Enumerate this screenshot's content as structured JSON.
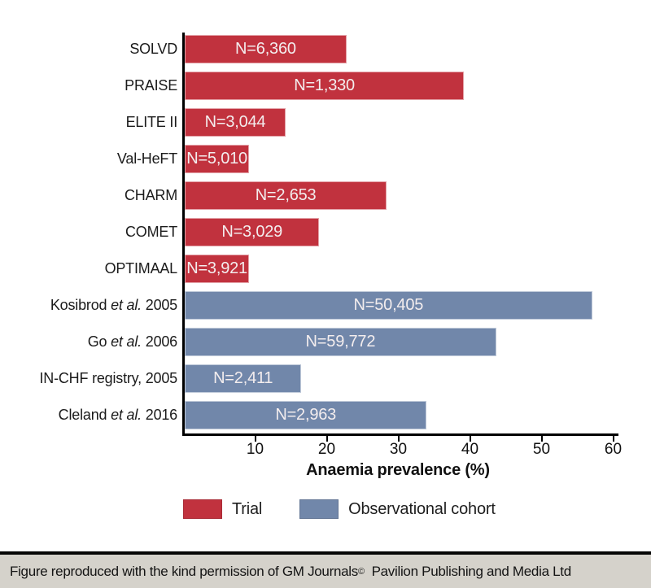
{
  "chart_data": {
    "type": "bar",
    "orientation": "horizontal",
    "title": "",
    "xlabel": "Anaemia prevalence (%)",
    "ylabel": "",
    "xlim": [
      0,
      60
    ],
    "x_ticks": [
      10,
      20,
      30,
      40,
      50,
      60
    ],
    "grid": false,
    "legend_position": "bottom",
    "categories": [
      "SOLVD",
      "PRAISE",
      "ELITE II",
      "Val-HeFT",
      "CHARM",
      "COMET",
      "OPTIMAAL",
      "Kosibrod et al. 2005",
      "Go et al. 2006",
      "IN-CHF registry, 2005",
      "Cleland et al. 2016"
    ],
    "colors": {
      "trial": "#c1323e",
      "observational": "#7187aa"
    },
    "rows": [
      {
        "label_pre": "SOLVD",
        "label_italic": "",
        "label_post": "",
        "n": "N=6,360",
        "value": 22.6,
        "group": "trial"
      },
      {
        "label_pre": "PRAISE",
        "label_italic": "",
        "label_post": "",
        "n": "N=1,330",
        "value": 39.0,
        "group": "trial"
      },
      {
        "label_pre": "ELITE II",
        "label_italic": "",
        "label_post": "",
        "n": "N=3,044",
        "value": 14.1,
        "group": "trial"
      },
      {
        "label_pre": "Val-HeFT",
        "label_italic": "",
        "label_post": "",
        "n": "N=5,010",
        "value": 9.0,
        "group": "trial"
      },
      {
        "label_pre": "CHARM",
        "label_italic": "",
        "label_post": "",
        "n": "N=2,653",
        "value": 28.2,
        "group": "trial"
      },
      {
        "label_pre": "COMET",
        "label_italic": "",
        "label_post": "",
        "n": "N=3,029",
        "value": 18.8,
        "group": "trial"
      },
      {
        "label_pre": "OPTIMAAL",
        "label_italic": "",
        "label_post": "",
        "n": "N=3,921",
        "value": 9.0,
        "group": "trial"
      },
      {
        "label_pre": "Kosibrod ",
        "label_italic": "et al.",
        "label_post": " 2005",
        "n": "N=50,405",
        "value": 56.9,
        "group": "observational"
      },
      {
        "label_pre": "Go ",
        "label_italic": "et al.",
        "label_post": " 2006",
        "n": "N=59,772",
        "value": 43.5,
        "group": "observational"
      },
      {
        "label_pre": "IN-CHF registry, 2005",
        "label_italic": "",
        "label_post": "",
        "n": "N=2,411",
        "value": 16.3,
        "group": "observational"
      },
      {
        "label_pre": "Cleland ",
        "label_italic": "et al.",
        "label_post": " 2016",
        "n": "N=2,963",
        "value": 33.8,
        "group": "observational"
      }
    ],
    "legend": [
      {
        "label": "Trial",
        "color": "#c1323e"
      },
      {
        "label": "Observational cohort",
        "color": "#7187aa"
      }
    ]
  },
  "footer": {
    "text": "Figure reproduced with the kind permission of GM Journals",
    "copyright": "©",
    "rest": "  Pavilion Publishing and Media Ltd"
  }
}
